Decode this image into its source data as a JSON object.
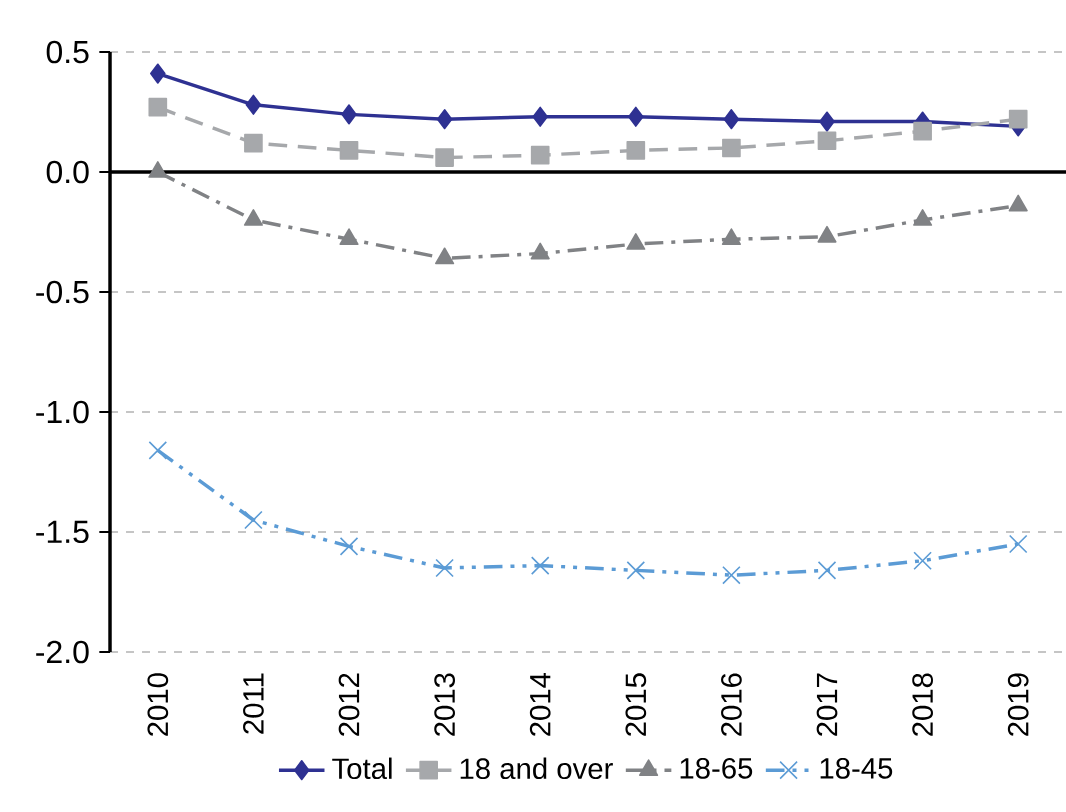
{
  "chart_data": {
    "type": "line",
    "categories": [
      "2010",
      "2011",
      "2012",
      "2013",
      "2014",
      "2015",
      "2016",
      "2017",
      "2018",
      "2019"
    ],
    "series": [
      {
        "name": "Total",
        "color": "#2e3192",
        "marker": "diamond",
        "line_style": "solid",
        "values": [
          0.41,
          0.28,
          0.24,
          0.22,
          0.23,
          0.23,
          0.22,
          0.21,
          0.21,
          0.19
        ]
      },
      {
        "name": "18 and over",
        "color": "#a6a8ab",
        "marker": "square",
        "line_style": "dashed",
        "values": [
          0.27,
          0.12,
          0.09,
          0.06,
          0.07,
          0.09,
          0.1,
          0.13,
          0.17,
          0.22
        ]
      },
      {
        "name": "18-65",
        "color": "#808285",
        "marker": "triangle",
        "line_style": "dashdot",
        "values": [
          0.0,
          -0.2,
          -0.28,
          -0.36,
          -0.34,
          -0.3,
          -0.28,
          -0.27,
          -0.2,
          -0.14
        ]
      },
      {
        "name": "18-45",
        "color": "#5b9bd5",
        "marker": "cross",
        "line_style": "dashdotdot",
        "values": [
          -1.16,
          -1.45,
          -1.56,
          -1.65,
          -1.64,
          -1.66,
          -1.68,
          -1.66,
          -1.62,
          -1.55
        ]
      }
    ],
    "ylim": [
      -2.0,
      0.5
    ],
    "yticks": [
      {
        "value": -2.0,
        "label": "-2.0"
      },
      {
        "value": -1.5,
        "label": "-1.5"
      },
      {
        "value": -1.0,
        "label": "-1.0"
      },
      {
        "value": -0.5,
        "label": "-0.5"
      },
      {
        "value": 0.0,
        "label": "0.0"
      },
      {
        "value": 0.5,
        "label": "0.5"
      }
    ],
    "grid": "y",
    "legend": "bottom"
  }
}
